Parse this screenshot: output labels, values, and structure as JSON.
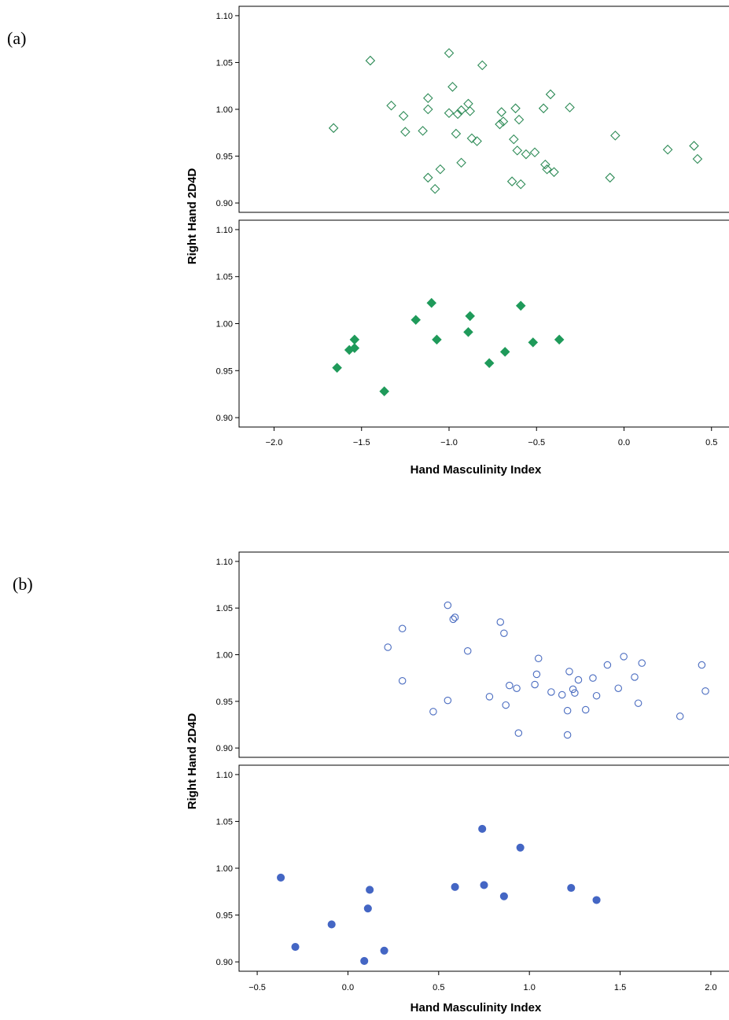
{
  "panels": {
    "a": {
      "label": "(a)"
    },
    "b": {
      "label": "(b)"
    }
  },
  "colors": {
    "green_marker": "#2E8B57",
    "green_fill": "#1F9A5A",
    "blue_marker": "#4A6CC0",
    "blue_fill": "#4466C4",
    "frame": "#000000"
  },
  "chart_data": [
    {
      "type": "scatter",
      "panel": "(a)",
      "xlabel": "Hand Masculinity Index",
      "ylabel": "Right Hand 2D4D",
      "xlim": [
        -2.2,
        0.6
      ],
      "ylim": [
        0.89,
        1.11
      ],
      "x_ticks": [
        "-2.0",
        "-1.5",
        "-1.0",
        "-0.5",
        "0.0",
        "0.5"
      ],
      "y_ticks": [
        "0.90",
        "0.95",
        "1.00",
        "1.05",
        "1.10"
      ],
      "grid": false,
      "series": [
        {
          "marker": "open-diamond",
          "color": "#2E8B57",
          "points": [
            [
              -1.66,
              0.98
            ],
            [
              -1.45,
              1.052
            ],
            [
              -1.33,
              1.004
            ],
            [
              -1.26,
              0.993
            ],
            [
              -1.25,
              0.976
            ],
            [
              -1.15,
              0.977
            ],
            [
              -1.12,
              1.012
            ],
            [
              -1.12,
              1.0
            ],
            [
              -1.12,
              0.927
            ],
            [
              -1.08,
              0.915
            ],
            [
              -1.05,
              0.936
            ],
            [
              -1.0,
              1.06
            ],
            [
              -1.0,
              0.996
            ],
            [
              -0.98,
              1.024
            ],
            [
              -0.96,
              0.974
            ],
            [
              -0.95,
              0.995
            ],
            [
              -0.93,
              0.943
            ],
            [
              -0.93,
              0.999
            ],
            [
              -0.89,
              1.006
            ],
            [
              -0.88,
              0.998
            ],
            [
              -0.87,
              0.969
            ],
            [
              -0.84,
              0.966
            ],
            [
              -0.81,
              1.047
            ],
            [
              -0.71,
              0.984
            ],
            [
              -0.7,
              0.997
            ],
            [
              -0.69,
              0.987
            ],
            [
              -0.64,
              0.923
            ],
            [
              -0.63,
              0.968
            ],
            [
              -0.62,
              1.001
            ],
            [
              -0.61,
              0.956
            ],
            [
              -0.6,
              0.989
            ],
            [
              -0.59,
              0.92
            ],
            [
              -0.56,
              0.952
            ],
            [
              -0.51,
              0.954
            ],
            [
              -0.46,
              1.001
            ],
            [
              -0.45,
              0.941
            ],
            [
              -0.44,
              0.936
            ],
            [
              -0.42,
              1.016
            ],
            [
              -0.4,
              0.933
            ],
            [
              -0.31,
              1.002
            ],
            [
              -0.08,
              0.927
            ],
            [
              -0.05,
              0.972
            ],
            [
              0.25,
              0.957
            ],
            [
              0.4,
              0.961
            ],
            [
              0.42,
              0.947
            ]
          ]
        },
        {
          "marker": "filled-diamond",
          "color": "#1F9A5A",
          "points": [
            [
              -1.64,
              0.953
            ],
            [
              -1.57,
              0.972
            ],
            [
              -1.54,
              0.983
            ],
            [
              -1.54,
              0.974
            ],
            [
              -1.37,
              0.928
            ],
            [
              -1.19,
              1.004
            ],
            [
              -1.1,
              1.022
            ],
            [
              -1.07,
              0.983
            ],
            [
              -0.89,
              0.991
            ],
            [
              -0.88,
              1.008
            ],
            [
              -0.77,
              0.958
            ],
            [
              -0.68,
              0.97
            ],
            [
              -0.59,
              1.019
            ],
            [
              -0.52,
              0.98
            ],
            [
              -0.37,
              0.983
            ]
          ]
        }
      ]
    },
    {
      "type": "scatter",
      "panel": "(b)",
      "xlabel": "Hand Masculinity Index",
      "ylabel": "Right Hand 2D4D",
      "xlim": [
        -0.6,
        2.1
      ],
      "ylim": [
        0.89,
        1.11
      ],
      "x_ticks": [
        "-0.5",
        "0.0",
        "0.5",
        "1.0",
        "1.5",
        "2.0"
      ],
      "y_ticks": [
        "0.90",
        "0.95",
        "1.00",
        "1.05",
        "1.10"
      ],
      "grid": false,
      "series": [
        {
          "marker": "open-circle",
          "color": "#4A6CC0",
          "points": [
            [
              0.22,
              1.008
            ],
            [
              0.3,
              1.028
            ],
            [
              0.3,
              0.972
            ],
            [
              0.47,
              0.939
            ],
            [
              0.55,
              1.053
            ],
            [
              0.55,
              0.951
            ],
            [
              0.58,
              1.038
            ],
            [
              0.59,
              1.04
            ],
            [
              0.66,
              1.004
            ],
            [
              0.78,
              0.955
            ],
            [
              0.84,
              1.035
            ],
            [
              0.86,
              1.023
            ],
            [
              0.87,
              0.946
            ],
            [
              0.89,
              0.967
            ],
            [
              0.93,
              0.964
            ],
            [
              0.94,
              0.916
            ],
            [
              1.03,
              0.968
            ],
            [
              1.04,
              0.979
            ],
            [
              1.05,
              0.996
            ],
            [
              1.12,
              0.96
            ],
            [
              1.18,
              0.957
            ],
            [
              1.21,
              0.94
            ],
            [
              1.21,
              0.914
            ],
            [
              1.22,
              0.982
            ],
            [
              1.24,
              0.963
            ],
            [
              1.25,
              0.959
            ],
            [
              1.27,
              0.973
            ],
            [
              1.31,
              0.941
            ],
            [
              1.35,
              0.975
            ],
            [
              1.37,
              0.956
            ],
            [
              1.43,
              0.989
            ],
            [
              1.49,
              0.964
            ],
            [
              1.52,
              0.998
            ],
            [
              1.58,
              0.976
            ],
            [
              1.6,
              0.948
            ],
            [
              1.62,
              0.991
            ],
            [
              1.83,
              0.934
            ],
            [
              1.95,
              0.989
            ],
            [
              1.97,
              0.961
            ]
          ]
        },
        {
          "marker": "filled-circle",
          "color": "#4466C4",
          "points": [
            [
              -0.37,
              0.99
            ],
            [
              -0.29,
              0.916
            ],
            [
              -0.09,
              0.94
            ],
            [
              0.09,
              0.901
            ],
            [
              0.11,
              0.957
            ],
            [
              0.12,
              0.977
            ],
            [
              0.2,
              0.912
            ],
            [
              0.59,
              0.98
            ],
            [
              0.74,
              1.042
            ],
            [
              0.75,
              0.982
            ],
            [
              0.86,
              0.97
            ],
            [
              0.95,
              1.022
            ],
            [
              1.23,
              0.979
            ],
            [
              1.37,
              0.966
            ]
          ]
        }
      ]
    }
  ]
}
